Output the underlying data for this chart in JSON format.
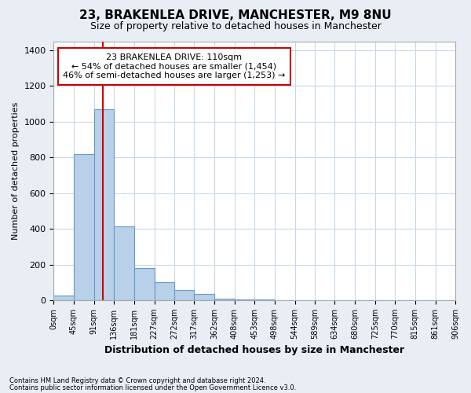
{
  "title1": "23, BRAKENLEA DRIVE, MANCHESTER, M9 8NU",
  "title2": "Size of property relative to detached houses in Manchester",
  "xlabel": "Distribution of detached houses by size in Manchester",
  "ylabel": "Number of detached properties",
  "bar_heights": [
    25,
    820,
    1070,
    415,
    180,
    100,
    55,
    35,
    10,
    5,
    2,
    0,
    0,
    0,
    0,
    0,
    0,
    0,
    0,
    0
  ],
  "bin_edges": [
    0,
    45,
    91,
    136,
    181,
    227,
    272,
    317,
    362,
    408,
    453,
    498,
    544,
    589,
    634,
    680,
    725,
    770,
    815,
    861,
    906
  ],
  "bar_color": "#b8d0e8",
  "bar_edge_color": "#6699cc",
  "vline_x": 110,
  "vline_color": "#cc0000",
  "annotation_line1": "23 BRAKENLEA DRIVE: 110sqm",
  "annotation_line2": "← 54% of detached houses are smaller (1,454)",
  "annotation_line3": "46% of semi-detached houses are larger (1,253) →",
  "annotation_box_color": "white",
  "annotation_border_color": "#cc0000",
  "ylim": [
    0,
    1450
  ],
  "yticks": [
    0,
    200,
    400,
    600,
    800,
    1000,
    1200,
    1400
  ],
  "xtick_labels": [
    "0sqm",
    "45sqm",
    "91sqm",
    "136sqm",
    "181sqm",
    "227sqm",
    "272sqm",
    "317sqm",
    "362sqm",
    "408sqm",
    "453sqm",
    "498sqm",
    "544sqm",
    "589sqm",
    "634sqm",
    "680sqm",
    "725sqm",
    "770sqm",
    "815sqm",
    "861sqm",
    "906sqm"
  ],
  "footnote1": "Contains HM Land Registry data © Crown copyright and database right 2024.",
  "footnote2": "Contains public sector information licensed under the Open Government Licence v3.0.",
  "bg_color": "#e8eef4",
  "plot_bg_color": "#ffffff",
  "grid_color": "#c8d8e8",
  "title1_fontsize": 11,
  "title2_fontsize": 9
}
